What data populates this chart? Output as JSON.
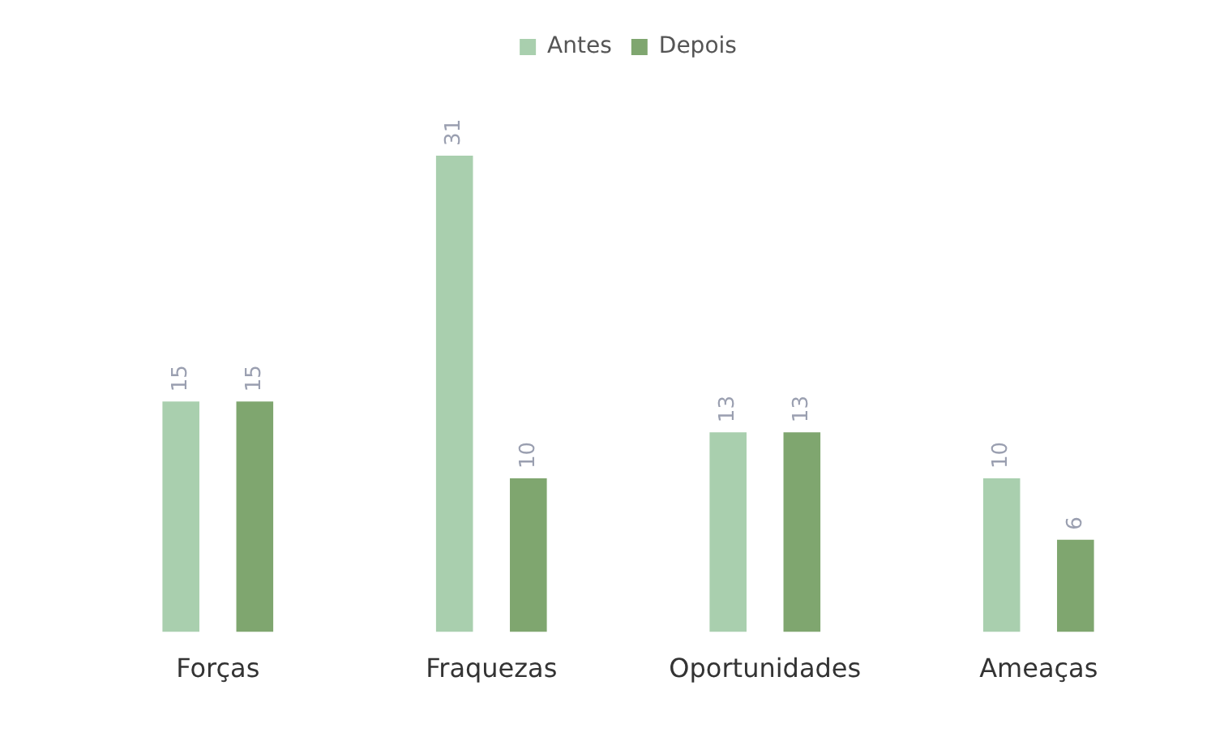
{
  "chart_data": {
    "type": "bar",
    "categories": [
      "Forças",
      "Fraquezas",
      "Oportunidades",
      "Ameaças"
    ],
    "series": [
      {
        "name": "Antes",
        "color": "#a9cfae",
        "values": [
          15,
          31,
          13,
          10
        ]
      },
      {
        "name": "Depois",
        "color": "#7fa66f",
        "values": [
          15,
          10,
          13,
          6
        ]
      }
    ],
    "data_labels": true,
    "legend": "top",
    "grid": false
  }
}
